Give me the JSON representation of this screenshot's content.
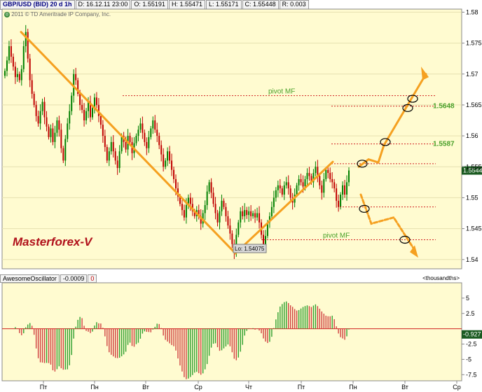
{
  "header": {
    "symbol": "GBP/USD (BID) 20 d 1h",
    "date": "D: 16.12.11 23:00",
    "open": "O: 1.55191",
    "high": "H: 1.55471",
    "low": "L: 1.55171",
    "close": "C: 1.55448",
    "range": "R: 0.003"
  },
  "copyright": "2011 © TD Ameritrade IP Company, Inc.",
  "watermark": "Masterforex-V",
  "colors": {
    "panel_bg": "#fffbd0",
    "up_candle": "#008000",
    "down_candle": "#c00000",
    "trend": "#f5a020",
    "pivot_line": "#d02020",
    "pivot_text": "#4aa02a",
    "osc_up": "#30a030",
    "osc_down": "#d04040"
  },
  "annotations": {
    "pivot_top": "pivot MF",
    "pivot_bottom": "pivot MF",
    "level_1": "1.5648",
    "level_2": "1.5587",
    "low_label": "Lo: 1.54075",
    "current_price": "1.5544"
  },
  "indicator": {
    "name": "AwesomeOscillator",
    "value": "-0.0009",
    "flag": "0",
    "units": "<thousandths>",
    "current_value": "-0.927"
  },
  "chart_data": {
    "type": "candlestick",
    "price_axis": {
      "ticks": [
        "1.58",
        "1.575",
        "1.57",
        "1.565",
        "1.56",
        "1.555",
        "1.55",
        "1.545",
        "1.54"
      ],
      "range": [
        1.5385,
        1.5805
      ]
    },
    "osc_axis": {
      "ticks": [
        "5",
        "2.5",
        "-2.5",
        "-5",
        "-7.5"
      ],
      "range": [
        -8.5,
        7.5
      ]
    },
    "x_ticks": [
      "Пт",
      "Пн",
      "Вт",
      "Ср",
      "Чт",
      "Пт",
      "Пн",
      "Вт",
      "Ср"
    ],
    "close": [
      1.5705,
      1.5722,
      1.5745,
      1.5728,
      1.5712,
      1.5695,
      1.57,
      1.569,
      1.5708,
      1.5745,
      1.5768,
      1.5725,
      1.569,
      1.5668,
      1.565,
      1.5632,
      1.562,
      1.564,
      1.5655,
      1.563,
      1.5615,
      1.5598,
      1.5612,
      1.559,
      1.5605,
      1.5625,
      1.561,
      1.558,
      1.556,
      1.5595,
      1.562,
      1.564,
      1.5665,
      1.57,
      1.569,
      1.5668,
      1.565,
      1.5642,
      1.5625,
      1.564,
      1.5655,
      1.563,
      1.5645,
      1.5662,
      1.565,
      1.5632,
      1.5618,
      1.56,
      1.5582,
      1.556,
      1.5575,
      1.559,
      1.5575,
      1.556,
      1.5548,
      1.5575,
      1.56,
      1.559,
      1.5578,
      1.56,
      1.559,
      1.5572,
      1.5588,
      1.56,
      1.561,
      1.562,
      1.5605,
      1.559,
      1.558,
      1.5598,
      1.5612,
      1.5625,
      1.561,
      1.56,
      1.5585,
      1.557,
      1.555,
      1.556,
      1.5575,
      1.556,
      1.5545,
      1.553,
      1.5515,
      1.5502,
      1.549,
      1.548,
      1.5468,
      1.5488,
      1.55,
      1.549,
      1.5478,
      1.547,
      1.548,
      1.547,
      1.5458,
      1.5475,
      1.5488,
      1.551,
      1.5525,
      1.5508,
      1.549,
      1.5475,
      1.546,
      1.5478,
      1.5495,
      1.5485,
      1.547,
      1.5455,
      1.5442,
      1.5425,
      1.5412,
      1.544,
      1.546,
      1.5478,
      1.547,
      1.548,
      1.5472,
      1.5478,
      1.547,
      1.5475,
      1.5468,
      1.5475,
      1.546,
      1.544,
      1.5425,
      1.5438,
      1.546,
      1.547,
      1.5485,
      1.55,
      1.5512,
      1.552,
      1.5515,
      1.5505,
      1.552,
      1.5525,
      1.5515,
      1.55,
      1.5492,
      1.5505,
      1.552,
      1.553,
      1.5525,
      1.5518,
      1.553,
      1.554,
      1.5535,
      1.5525,
      1.554,
      1.555,
      1.5535,
      1.552,
      1.5508,
      1.553,
      1.5545,
      1.554,
      1.553,
      1.5525,
      1.5515,
      1.5495,
      1.5485,
      1.5505,
      1.552,
      1.5505,
      1.5525,
      1.5544
    ]
  }
}
